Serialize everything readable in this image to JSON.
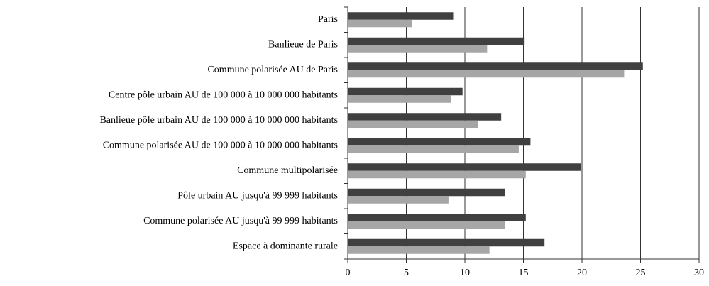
{
  "chart_data": {
    "type": "hbar",
    "categories": [
      "Paris",
      "Banlieue de Paris",
      "Commune polarisée AU de Paris",
      "Centre pôle urbain AU de 100 000 à 10 000 000 habitants",
      "Banlieue pôle urbain AU de 100 000 à 10 000 000 habitants",
      "Commune polarisée AU de 100 000 à 10 000 000 habitants",
      "Commune multipolarisée",
      "Pôle urbain AU jusqu'à 99 999 habitants",
      "Commune polarisée AU jusqu'à 99 999 habitants",
      "Espace à dominante rurale"
    ],
    "series": [
      {
        "color": "#404040",
        "values": [
          9.0,
          15.1,
          25.2,
          9.8,
          13.1,
          15.6,
          19.9,
          13.4,
          15.2,
          16.8
        ]
      },
      {
        "color": "#a6a6a6",
        "values": [
          5.5,
          11.9,
          23.6,
          8.8,
          11.1,
          14.6,
          15.2,
          8.6,
          13.4,
          12.1
        ]
      }
    ],
    "xlim": [
      0,
      30
    ],
    "xticks": [
      0,
      5,
      10,
      15,
      20,
      25,
      30
    ],
    "grid": true
  }
}
